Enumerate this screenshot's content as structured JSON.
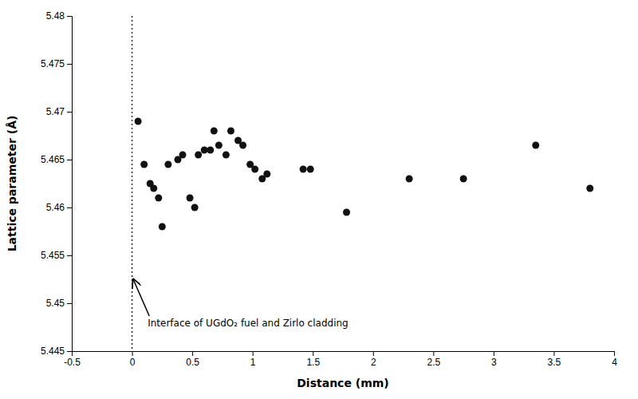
{
  "chart_data": {
    "type": "scatter",
    "x": [
      0.05,
      0.1,
      0.15,
      0.18,
      0.22,
      0.25,
      0.3,
      0.38,
      0.42,
      0.48,
      0.52,
      0.55,
      0.6,
      0.65,
      0.68,
      0.72,
      0.78,
      0.82,
      0.88,
      0.92,
      0.98,
      1.02,
      1.08,
      1.12,
      1.42,
      1.48,
      1.78,
      2.3,
      2.75,
      3.35,
      3.8
    ],
    "values": [
      5.469,
      5.4645,
      5.4625,
      5.462,
      5.461,
      5.458,
      5.4645,
      5.465,
      5.4655,
      5.461,
      5.46,
      5.4655,
      5.466,
      5.466,
      5.468,
      5.4665,
      5.4655,
      5.468,
      5.467,
      5.4665,
      5.4645,
      5.464,
      5.463,
      5.4635,
      5.464,
      5.464,
      5.4595,
      5.463,
      5.463,
      5.4665,
      5.462
    ],
    "color": "#111111",
    "x_label": "Distance (mm)",
    "y_label": "Lattice parameter (Å)",
    "xlim": [
      -0.5,
      4.0
    ],
    "ylim": [
      5.445,
      5.48
    ],
    "xticks": [
      -0.5,
      0,
      0.5,
      1,
      1.5,
      2,
      2.5,
      3,
      3.5,
      4
    ],
    "yticks": [
      5.445,
      5.45,
      5.455,
      5.46,
      5.465,
      5.47,
      5.475,
      5.48
    ],
    "vlines": [
      0
    ],
    "annotations": [
      {
        "text": "Interface of UGdO₂ fuel and Zirlo cladding",
        "xy": [
          0.01,
          5.4525
        ],
        "xytext": [
          0.13,
          5.4485
        ]
      }
    ],
    "grid": false
  }
}
